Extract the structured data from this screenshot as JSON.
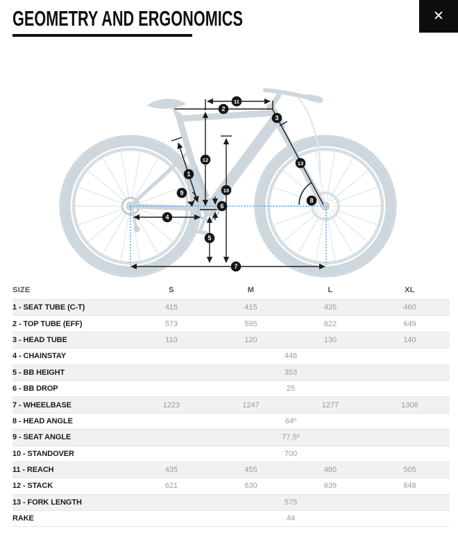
{
  "window": {
    "title": "GEOMETRY AND ERGONOMICS",
    "close_icon": "✕"
  },
  "diagram": {
    "callouts": [
      "1",
      "2",
      "3",
      "4",
      "5",
      "6",
      "7",
      "8",
      "9",
      "10",
      "11",
      "12",
      "13"
    ]
  },
  "table": {
    "columns": [
      "SIZE",
      "S",
      "M",
      "L",
      "XL"
    ],
    "rows": [
      {
        "label": "1 - SEAT TUBE (C-T)",
        "merged": false,
        "values": [
          "415",
          "415",
          "435",
          "460"
        ]
      },
      {
        "label": "2 - TOP TUBE (EFF)",
        "merged": false,
        "values": [
          "573",
          "595",
          "622",
          "649"
        ]
      },
      {
        "label": "3 - HEAD TUBE",
        "merged": false,
        "values": [
          "110",
          "120",
          "130",
          "140"
        ]
      },
      {
        "label": "4 - CHAINSTAY",
        "merged": true,
        "values": [
          "448"
        ]
      },
      {
        "label": "5 - BB HEIGHT",
        "merged": true,
        "values": [
          "353"
        ]
      },
      {
        "label": "6 - BB DROP",
        "merged": true,
        "values": [
          "25"
        ]
      },
      {
        "label": "7 - WHEELBASE",
        "merged": false,
        "values": [
          "1223",
          "1247",
          "1277",
          "1306"
        ]
      },
      {
        "label": "8 - HEAD ANGLE",
        "merged": true,
        "values": [
          "64º"
        ]
      },
      {
        "label": "9 - SEAT ANGLE",
        "merged": true,
        "values": [
          "77,5º"
        ]
      },
      {
        "label": "10 - STANDOVER",
        "merged": true,
        "values": [
          "700"
        ]
      },
      {
        "label": "11 - REACH",
        "merged": false,
        "values": [
          "435",
          "455",
          "480",
          "505"
        ]
      },
      {
        "label": "12 - STACK",
        "merged": false,
        "values": [
          "621",
          "630",
          "639",
          "648"
        ]
      },
      {
        "label": "13 - FORK LENGTH",
        "merged": true,
        "values": [
          "575"
        ]
      },
      {
        "label": "RAKE",
        "merged": true,
        "values": [
          "44"
        ]
      }
    ]
  },
  "colors": {
    "accent_blue": "#49a3f5",
    "silhouette": "#cdd7dd",
    "ink": "#1d1d1d",
    "row_alt_bg": "#f1f1f1",
    "value_text": "#9b9b9b"
  }
}
